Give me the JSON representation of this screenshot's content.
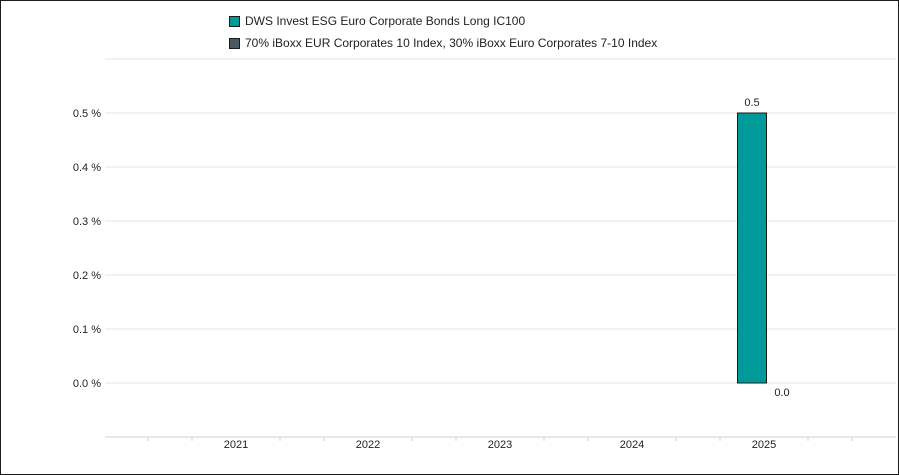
{
  "chart_data": {
    "type": "bar",
    "categories": [
      "2021",
      "2022",
      "2023",
      "2024",
      "2025"
    ],
    "series": [
      {
        "name": "DWS Invest ESG Euro Corporate Bonds Long IC100",
        "color": "#009a9a",
        "values": [
          null,
          null,
          null,
          null,
          0.5
        ],
        "labels": [
          "",
          "",
          "",
          "",
          "0.5"
        ]
      },
      {
        "name": "70% iBoxx EUR Corporates 10 Index, 30% iBoxx Euro Corporates 7-10 Index",
        "color": "#4a5a63",
        "values": [
          null,
          null,
          null,
          null,
          0.0
        ],
        "labels": [
          "",
          "",
          "",
          "",
          "0.0"
        ]
      }
    ],
    "yticks": [
      "0.0 %",
      "0.1 %",
      "0.2 %",
      "0.3 %",
      "0.4 %",
      "0.5 %"
    ],
    "ylim": [
      0,
      0.5
    ],
    "grid": true,
    "legend_position": "top"
  }
}
